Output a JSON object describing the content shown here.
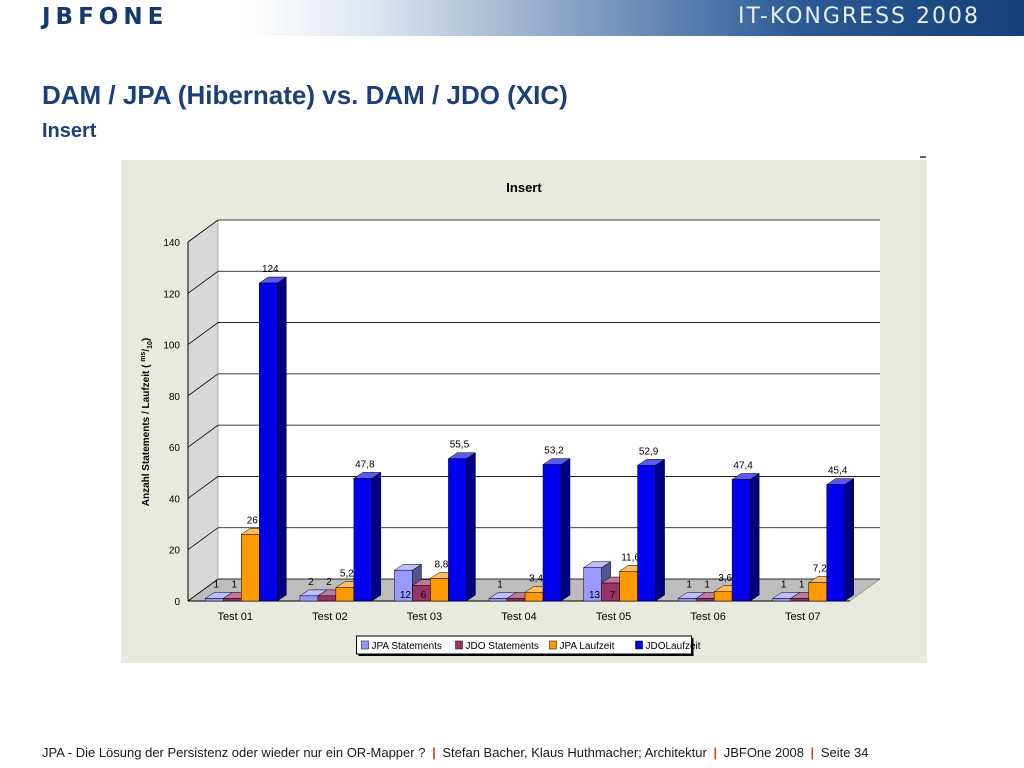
{
  "header": {
    "logo": "JBFONE",
    "event": "IT-KONGRESS 2008"
  },
  "slide": {
    "title": "DAM / JPA (Hibernate) vs. DAM / JDO (XIC)",
    "subtitle": "Insert"
  },
  "chart_data": {
    "type": "bar",
    "title": "Insert",
    "ylabel_main": "Anzahl Statements / Laufzeit (",
    "ylabel_unit": "ms",
    "ylabel_den": "10",
    "ylabel_close": ")",
    "ylim": [
      0,
      140
    ],
    "yticks": [
      0,
      20,
      40,
      60,
      80,
      100,
      120,
      140
    ],
    "grid": true,
    "legend": "bottom",
    "categories": [
      "Test 01",
      "Test 02",
      "Test 03",
      "Test 04",
      "Test 05",
      "Test 06",
      "Test 07"
    ],
    "series": [
      {
        "name": "JPA Statements",
        "values": [
          1,
          2,
          12,
          1,
          13,
          1,
          1
        ],
        "color": "#9999ff"
      },
      {
        "name": "JDO Statements",
        "values": [
          1,
          2,
          6,
          1,
          7,
          1,
          1
        ],
        "color": "#993366"
      },
      {
        "name": "JPA Laufzeit",
        "values": [
          26,
          5.2,
          8.8,
          3.4,
          11.6,
          3.6,
          7.2
        ],
        "color": "#ff9900"
      },
      {
        "name": "JDOLaufzeit",
        "values": [
          124,
          47.8,
          55.5,
          53.2,
          52.9,
          47.4,
          45.4
        ],
        "color": "#0000ee"
      }
    ],
    "value_labels": [
      [
        "1",
        "1",
        "26",
        "124"
      ],
      [
        "2",
        "2",
        "5,2",
        "47,8"
      ],
      [
        "12",
        "6",
        "8,8",
        "55,5"
      ],
      [
        "1",
        "",
        "3,4",
        "53,2"
      ],
      [
        "13",
        "7",
        "11,6",
        "52,9"
      ],
      [
        "1",
        "1",
        "3,6",
        "47,4"
      ],
      [
        "1",
        "1",
        "7,2",
        "45,4"
      ]
    ]
  },
  "footer": {
    "topic": "JPA - Die Lösung der Persistenz oder wieder nur ein OR-Mapper ?",
    "authors": "Stefan Bacher, Klaus Huthmacher; Architektur",
    "event": "JBFOne 2008",
    "page": "Seite 34",
    "sep": "|"
  }
}
